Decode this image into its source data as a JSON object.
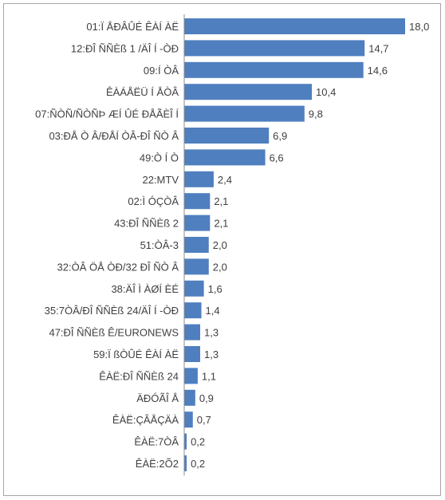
{
  "chart_data": {
    "type": "bar",
    "orientation": "horizontal",
    "categories": [
      "01:Ï ÅÐÂÛÉ ÊÀÍ ÀË",
      "12:ÐÎ ÑÑÈß 1 /ÄÎ Í -ÒÐ",
      "09:Í ÒÂ",
      "ÊÀÁÅËÜ Í ÅÒÂ",
      "07:ÑÒÑ/ÑÒÑÞ ÆÍ ÛÉ ÐÅÃÈÎ Í",
      "03:ÐÅ Ò Â/ÐÅÍ ÒÂ-ÐÎ ÑÒ Â",
      "49:Ò Í Ò",
      "22:MTV",
      "02:Ì ÓÇÒÂ",
      "43:ÐÎ ÑÑÈß 2",
      "51:ÒÂ-3",
      "32:ÒÂ ÖÅ ÒÐ/32 ÐÎ ÑÒ Â",
      "38:ÄÎ Ì ÀØÍ ÈÉ",
      "35:7ÒÂ/ÐÎ ÑÑÈß 24/ÄÎ Í -ÒÐ",
      "47:ÐÎ ÑÑÈß Ê/EURONEWS",
      "59:Ï ßÒÛÉ ÊÀÍ ÀË",
      "ÊÀË:ÐÎ ÑÑÈß 24",
      "ÄÐÓÃÎ Å",
      "ÊÀË:ÇÂÅÇÄÀ",
      "ÊÀË:7ÒÂ",
      "ÊÀË:2Õ2"
    ],
    "values": [
      18.0,
      14.7,
      14.6,
      10.4,
      9.8,
      6.9,
      6.6,
      2.4,
      2.1,
      2.1,
      2.0,
      2.0,
      1.6,
      1.4,
      1.3,
      1.3,
      1.1,
      0.9,
      0.7,
      0.2,
      0.2
    ],
    "value_labels": [
      "18,0",
      "14,7",
      "14,6",
      "10,4",
      "9,8",
      "6,9",
      "6,6",
      "2,4",
      "2,1",
      "2,1",
      "2,0",
      "2,0",
      "1,6",
      "1,4",
      "1,3",
      "1,3",
      "1,1",
      "0,9",
      "0,7",
      "0,2",
      "0,2"
    ],
    "title": "",
    "xlabel": "",
    "ylabel": "",
    "xlim": [
      0,
      18.0
    ],
    "grid": false,
    "legend": "none",
    "bar_color": "#4f7fbf"
  }
}
